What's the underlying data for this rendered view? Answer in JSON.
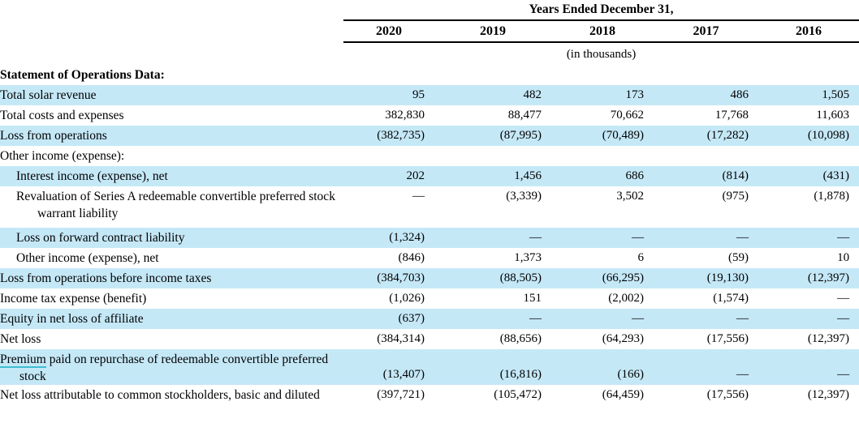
{
  "header": {
    "title": "Years Ended December 31,",
    "years": [
      "2020",
      "2019",
      "2018",
      "2017",
      "2016"
    ],
    "units_note": "(in thousands)"
  },
  "section_title": "Statement of Operations Data:",
  "rows": [
    {
      "label": "Total solar revenue",
      "indent": 0,
      "highlight": true,
      "values": [
        "95",
        "482",
        "173",
        "486",
        "1,505"
      ]
    },
    {
      "label": "Total costs and expenses",
      "indent": 0,
      "highlight": false,
      "values": [
        "382,830",
        "88,477",
        "70,662",
        "17,768",
        "11,603"
      ]
    },
    {
      "label": "Loss from operations",
      "indent": 0,
      "highlight": true,
      "values": [
        "(382,735)",
        "(87,995)",
        "(70,489)",
        "(17,282)",
        "(10,098)"
      ]
    },
    {
      "label": "Other income (expense):",
      "indent": 0,
      "highlight": false,
      "values": [
        "",
        "",
        "",
        "",
        ""
      ]
    },
    {
      "label": "Interest income (expense), net",
      "indent": 1,
      "highlight": true,
      "values": [
        "202",
        "1,456",
        "686",
        "(814)",
        "(431)"
      ]
    },
    {
      "label": "Revaluation of Series A redeemable convertible preferred stock warrant liability",
      "indent": 1,
      "highlight": false,
      "valign": "top",
      "values": [
        "—",
        "(3,339)",
        "3,502",
        "(975)",
        "(1,878)"
      ]
    },
    {
      "label": "Loss on forward contract liability",
      "indent": 1,
      "highlight": true,
      "values": [
        "(1,324)",
        "—",
        "—",
        "—",
        "—"
      ]
    },
    {
      "label": "Other income (expense), net",
      "indent": 1,
      "highlight": false,
      "values": [
        "(846)",
        "1,373",
        "6",
        "(59)",
        "10"
      ]
    },
    {
      "label": "Loss from operations before income taxes",
      "indent": 0,
      "highlight": true,
      "values": [
        "(384,703)",
        "(88,505)",
        "(66,295)",
        "(19,130)",
        "(12,397)"
      ]
    },
    {
      "label": "Income tax expense (benefit)",
      "indent": 0,
      "highlight": false,
      "values": [
        "(1,026)",
        "151",
        "(2,002)",
        "(1,574)",
        "—"
      ]
    },
    {
      "label": "Equity in net loss of affiliate",
      "indent": 0,
      "highlight": true,
      "values": [
        "(637)",
        "—",
        "—",
        "—",
        "—"
      ]
    },
    {
      "label": "Net loss",
      "indent": 0,
      "highlight": false,
      "values": [
        "(384,314)",
        "(88,656)",
        "(64,293)",
        "(17,556)",
        "(12,397)"
      ]
    },
    {
      "label_underlined": "Premium",
      "label_rest": " paid on repurchase of redeemable convertible preferred stock",
      "indent": 0,
      "highlight": true,
      "values": [
        "(13,407)",
        "(16,816)",
        "(166)",
        "—",
        "—"
      ]
    },
    {
      "label": "Net loss attributable to common stockholders, basic and diluted",
      "indent": 0,
      "highlight": false,
      "values": [
        "(397,721)",
        "(105,472)",
        "(64,459)",
        "(17,556)",
        "(12,397)"
      ]
    }
  ],
  "colors": {
    "highlight_blue": "#C5E8F7",
    "premium_underline_teal": "#3FBDD1"
  }
}
